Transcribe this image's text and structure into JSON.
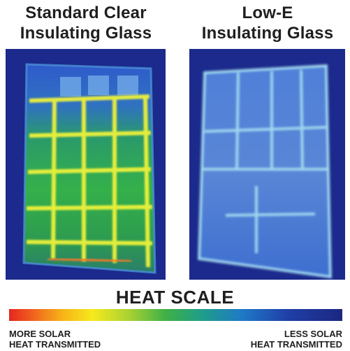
{
  "titles": {
    "left": "Standard Clear\nInsulating Glass",
    "right": "Low-E\nInsulating Glass"
  },
  "scale": {
    "title": "HEAT SCALE",
    "left_label": "MORE SOLAR\nHEAT TRANSMITTED",
    "right_label": "LESS SOLAR\nHEAT TRANSMITTED"
  },
  "colors": {
    "background_frame": "#1a2a8a",
    "standard_glow": "#e6ef2a",
    "lowe_glow": "#a8e2f2"
  }
}
